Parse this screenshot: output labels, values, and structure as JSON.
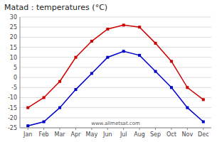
{
  "chart_data": {
    "type": "line",
    "title": "Matad : temperatures (°C)",
    "categories": [
      "Jan",
      "Feb",
      "Mar",
      "Apr",
      "May",
      "Jun",
      "Jul",
      "Aug",
      "Sep",
      "Oct",
      "Nov",
      "Dec"
    ],
    "series": [
      {
        "color": "#cc0000",
        "marker": "square",
        "line_style": "solid",
        "values": [
          -15,
          -10,
          -2,
          10,
          18,
          24,
          26,
          25,
          17,
          8,
          -5,
          -11
        ]
      },
      {
        "color": "#0000cc",
        "marker": "square",
        "line_style": "solid",
        "values": [
          -24,
          -22,
          -15,
          -6,
          2,
          10,
          13,
          11,
          3,
          -5,
          -15,
          -22
        ]
      }
    ],
    "ylim": [
      -25,
      30
    ],
    "yticks": [
      -25,
      -20,
      -15,
      -10,
      -5,
      0,
      5,
      10,
      15,
      20,
      25,
      30
    ],
    "grid": true,
    "annotations": [
      "www.allmetsat.com"
    ]
  }
}
